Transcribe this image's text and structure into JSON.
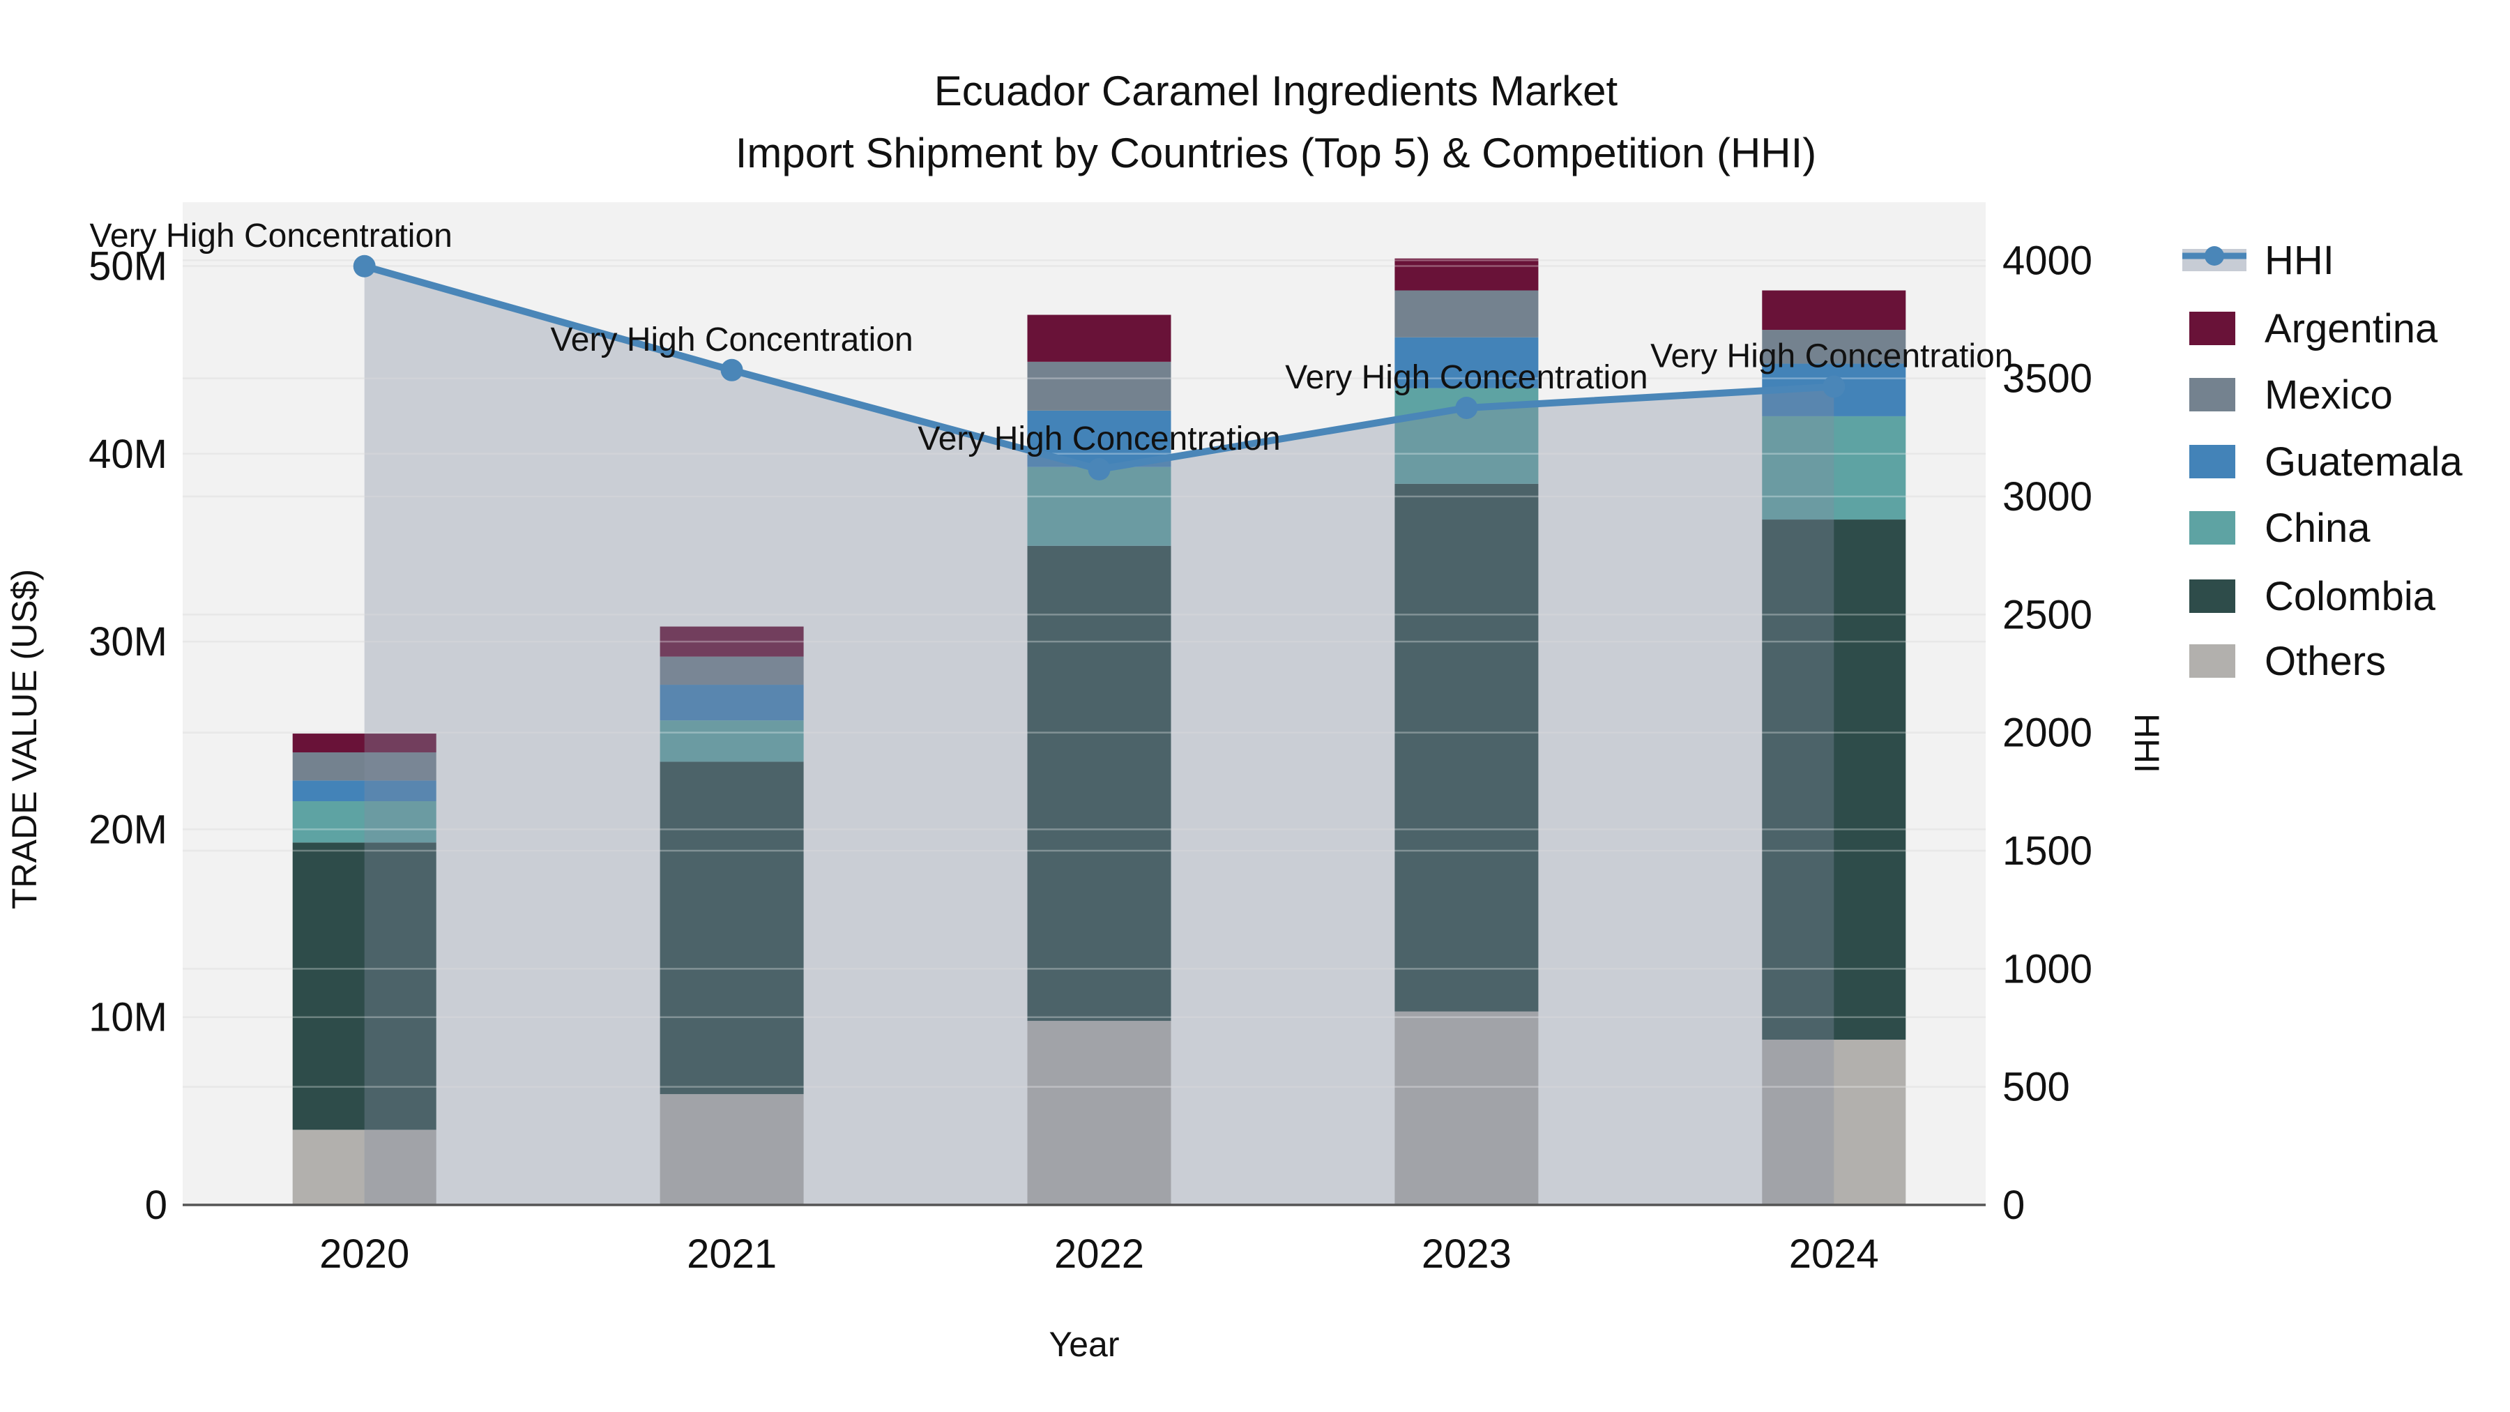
{
  "title": {
    "line1": "Ecuador Caramel Ingredients Market",
    "line2": "Import Shipment by Countries (Top 5) & Competition (HHI)"
  },
  "axes": {
    "x_title": "Year",
    "y_left_title": "TRADE VALUE (US$)",
    "y_right_title": "HHI",
    "y_left_tick_labels": [
      "0",
      "10M",
      "20M",
      "30M",
      "40M",
      "50M"
    ],
    "y_left_tick_values": [
      0,
      10,
      20,
      30,
      40,
      50
    ],
    "y_right_tick_labels": [
      "0",
      "500",
      "1000",
      "1500",
      "2000",
      "2500",
      "3000",
      "3500",
      "4000"
    ],
    "y_right_tick_values": [
      0,
      500,
      1000,
      1500,
      2000,
      2500,
      3000,
      3500,
      4000
    ],
    "x_tick_labels": [
      "2020",
      "2021",
      "2022",
      "2023",
      "2024"
    ]
  },
  "chart_data": {
    "type": "stacked-bar+line",
    "units_bars": "trade value, millions of US$",
    "units_line": "HHI index",
    "categories": [
      "2020",
      "2021",
      "2022",
      "2023",
      "2024"
    ],
    "series": [
      {
        "name": "Others",
        "color": "#b2b0ad",
        "values": [
          4.0,
          5.9,
          9.8,
          10.3,
          8.8
        ]
      },
      {
        "name": "Colombia",
        "color": "#2e4c4a",
        "values": [
          15.3,
          17.7,
          25.3,
          28.1,
          27.7
        ]
      },
      {
        "name": "China",
        "color": "#5ea3a3",
        "values": [
          2.2,
          2.2,
          4.2,
          5.1,
          5.5
        ]
      },
      {
        "name": "Guatemala",
        "color": "#4383b8",
        "values": [
          1.1,
          1.9,
          3.0,
          2.7,
          2.8
        ]
      },
      {
        "name": "Mexico",
        "color": "#74828f",
        "values": [
          1.5,
          1.5,
          2.6,
          2.5,
          1.8
        ]
      },
      {
        "name": "Argentina",
        "color": "#691238",
        "values": [
          1.0,
          1.6,
          2.5,
          1.7,
          2.1
        ]
      }
    ],
    "totals": [
      25.1,
      30.8,
      47.4,
      50.4,
      48.7
    ],
    "line": {
      "name": "HHI",
      "color": "#4a86b8",
      "area_fill": "rgba(130,142,162,0.36)",
      "values": [
        3975,
        3535,
        3115,
        3375,
        3465
      ]
    },
    "annotations": [
      "Very High Concentration",
      "Very High Concentration",
      "Very High Concentration",
      "Very High Concentration",
      "Very High Concentration"
    ],
    "ylim_left_millions": [
      0,
      53.4
    ],
    "ylim_right_hhi": [
      0,
      4246
    ],
    "grid": true,
    "legend_position": "right",
    "legend": [
      {
        "label": "HHI",
        "type": "line",
        "color": "#4a86b8"
      },
      {
        "label": "Argentina",
        "type": "square",
        "color": "#691238"
      },
      {
        "label": "Mexico",
        "type": "square",
        "color": "#74828f"
      },
      {
        "label": "Guatemala",
        "type": "square",
        "color": "#4383b8"
      },
      {
        "label": "China",
        "type": "square",
        "color": "#5ea3a3"
      },
      {
        "label": "Colombia",
        "type": "square",
        "color": "#2e4c4a"
      },
      {
        "label": "Others",
        "type": "square",
        "color": "#b2b0ad"
      }
    ],
    "colors": {
      "plot_background": "#f2f2f2",
      "figure_background": "#ffffff",
      "gridline": "#dedede",
      "axis_line": "#545454",
      "text": "#111111"
    }
  }
}
